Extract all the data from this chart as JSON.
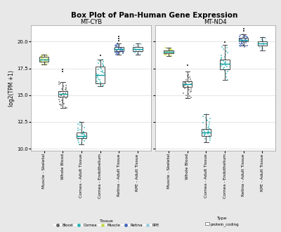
{
  "title": "Box Plot of Pan-Human Gene Expression",
  "ylabel": "log2(TPM +1)",
  "ylim": [
    9.8,
    21.5
  ],
  "yticks": [
    10.0,
    12.5,
    15.0,
    17.5,
    20.0
  ],
  "panels": [
    "MT-CYB",
    "MT-ND4"
  ],
  "categories": [
    "Muscle - Skeletal",
    "Whole Blood",
    "Cornea - Adult Tissue",
    "Cornea - Endothelium",
    "Retina - Adult Tissue",
    "RPE - Adult Tissue"
  ],
  "tissue_colors": {
    "Muscle - Skeletal": "#c8d94e",
    "Whole Blood": "#606060",
    "Cornea - Adult Tissue": "#2ab5b5",
    "Cornea - Endothelium": "#2ab5b5",
    "Retina - Adult Tissue": "#4466bb",
    "RPE - Adult Tissue": "#99ccdd"
  },
  "legend_tissue_colors": {
    "Blood": "#606060",
    "Cornea": "#2ab5b5",
    "Muscle": "#c8d94e",
    "Retina": "#4466bb",
    "RPE": "#99ccdd"
  },
  "MT-CYB": {
    "Muscle - Skeletal": {
      "median": 18.35,
      "q1": 18.15,
      "q3": 18.55,
      "whislo": 17.85,
      "whishi": 18.75,
      "points": [
        17.85,
        17.9,
        17.95,
        18.0,
        18.05,
        18.1,
        18.15,
        18.2,
        18.25,
        18.3,
        18.35,
        18.4,
        18.45,
        18.5,
        18.55,
        18.6,
        18.65,
        18.7,
        18.75,
        17.88,
        18.12,
        18.22,
        18.32,
        18.42,
        18.52,
        18.62,
        18.72,
        18.08,
        18.18,
        18.28,
        18.38,
        18.48,
        18.58,
        18.68
      ]
    },
    "Whole Blood": {
      "median": 15.1,
      "q1": 14.85,
      "q3": 15.35,
      "whislo": 13.8,
      "whishi": 16.2,
      "fliers_high": [
        17.2,
        17.4
      ],
      "points": [
        13.8,
        13.9,
        14.0,
        14.1,
        14.2,
        14.3,
        14.4,
        14.5,
        14.6,
        14.7,
        14.8,
        14.9,
        15.0,
        15.1,
        15.2,
        15.3,
        15.4,
        15.5,
        15.6,
        15.7,
        15.8,
        15.9,
        16.0,
        16.1,
        16.2,
        14.15,
        14.55,
        14.95,
        15.15,
        15.55
      ]
    },
    "Cornea - Adult Tissue": {
      "median": 11.2,
      "q1": 11.0,
      "q3": 11.5,
      "whislo": 10.4,
      "whishi": 12.5,
      "points": [
        10.4,
        10.5,
        10.6,
        10.7,
        10.8,
        10.9,
        11.0,
        11.1,
        11.2,
        11.3,
        11.4,
        11.5,
        11.6,
        11.7,
        11.8,
        11.9,
        12.0,
        12.1,
        12.2,
        12.3,
        12.4,
        12.5,
        11.05,
        11.15,
        11.25,
        11.35,
        10.95,
        11.45,
        11.55,
        10.85
      ]
    },
    "Cornea - Endothelium": {
      "median": 16.85,
      "q1": 16.1,
      "q3": 17.65,
      "whislo": 15.8,
      "whishi": 18.3,
      "fliers_high": [
        18.7
      ],
      "points": [
        15.8,
        16.0,
        16.2,
        16.4,
        16.6,
        16.8,
        17.0,
        17.2,
        17.4,
        17.6,
        17.8,
        18.0,
        18.2,
        18.3,
        16.1,
        16.3,
        16.5,
        16.7,
        17.1,
        17.3,
        17.5,
        17.7,
        17.9,
        16.9,
        15.9,
        16.15,
        17.15,
        18.1,
        16.85
      ]
    },
    "Retina - Adult Tissue": {
      "median": 19.3,
      "q1": 19.1,
      "q3": 19.5,
      "whislo": 18.8,
      "whishi": 19.8,
      "fliers_high": [
        20.1,
        20.3,
        20.5
      ],
      "points": [
        18.8,
        18.9,
        19.0,
        19.1,
        19.2,
        19.3,
        19.4,
        19.5,
        19.6,
        19.7,
        19.8,
        19.15,
        19.25,
        19.35,
        19.45,
        18.85,
        18.95,
        19.05,
        19.55,
        19.65,
        19.75,
        18.75,
        19.0,
        19.2,
        19.4,
        19.6,
        19.8,
        19.3,
        19.1,
        19.5,
        19.7,
        18.9,
        19.0,
        19.25,
        19.35,
        19.15,
        19.45,
        18.95,
        19.05
      ]
    },
    "RPE - Adult Tissue": {
      "median": 19.3,
      "q1": 19.1,
      "q3": 19.5,
      "whislo": 18.8,
      "whishi": 19.8,
      "points": [
        18.8,
        18.9,
        19.0,
        19.1,
        19.2,
        19.3,
        19.4,
        19.5,
        19.6,
        19.7,
        19.8,
        19.15,
        19.25,
        19.35,
        19.45,
        18.85,
        18.95,
        19.05,
        19.55,
        19.65,
        19.75,
        18.75,
        19.0,
        19.2
      ]
    }
  },
  "MT-ND4": {
    "Muscle - Skeletal": {
      "median": 19.05,
      "q1": 18.9,
      "q3": 19.2,
      "whislo": 18.65,
      "whishi": 19.4,
      "points": [
        18.65,
        18.7,
        18.75,
        18.8,
        18.85,
        18.9,
        18.95,
        19.0,
        19.05,
        19.1,
        19.15,
        19.2,
        19.25,
        19.3,
        19.35,
        19.4,
        18.8,
        19.0,
        19.2,
        18.9,
        19.1,
        19.3,
        18.75,
        18.85,
        19.05,
        19.15,
        19.25,
        19.35,
        18.7,
        18.95
      ]
    },
    "Whole Blood": {
      "median": 16.05,
      "q1": 15.75,
      "q3": 16.3,
      "whislo": 14.7,
      "whishi": 17.2,
      "fliers_high": [
        17.8
      ],
      "points": [
        14.7,
        14.9,
        15.1,
        15.3,
        15.5,
        15.7,
        15.9,
        16.0,
        16.1,
        16.2,
        16.3,
        16.4,
        16.5,
        16.6,
        16.7,
        16.8,
        16.9,
        15.8,
        16.15,
        16.25,
        15.95,
        15.85,
        15.75,
        15.65,
        15.55,
        16.05,
        14.8,
        15.0,
        15.2,
        15.4
      ]
    },
    "Cornea - Adult Tissue": {
      "median": 11.5,
      "q1": 11.2,
      "q3": 11.85,
      "whislo": 10.6,
      "whishi": 13.2,
      "points": [
        10.6,
        10.8,
        11.0,
        11.2,
        11.3,
        11.4,
        11.5,
        11.6,
        11.7,
        11.8,
        11.9,
        12.0,
        12.2,
        12.4,
        12.6,
        12.8,
        13.0,
        13.2,
        11.1,
        11.35,
        11.55,
        11.75,
        10.9,
        11.25,
        11.65,
        12.1,
        12.3,
        12.5,
        12.7,
        12.9
      ]
    },
    "Cornea - Endothelium": {
      "median": 17.9,
      "q1": 17.4,
      "q3": 18.3,
      "whislo": 16.4,
      "whishi": 19.7,
      "fliers_high": [
        19.95
      ],
      "points": [
        16.4,
        16.7,
        17.0,
        17.2,
        17.4,
        17.5,
        17.6,
        17.7,
        17.8,
        17.9,
        18.0,
        18.1,
        18.2,
        18.3,
        18.5,
        18.7,
        19.0,
        19.3,
        19.5,
        17.3,
        17.65,
        17.85,
        18.05,
        18.25,
        18.4,
        18.6,
        18.8,
        19.1,
        19.4
      ]
    },
    "Retina - Adult Tissue": {
      "median": 20.15,
      "q1": 20.0,
      "q3": 20.35,
      "whislo": 19.6,
      "whishi": 20.65,
      "fliers_high": [
        21.0,
        21.2
      ],
      "points": [
        19.6,
        19.7,
        19.8,
        19.9,
        20.0,
        20.1,
        20.2,
        20.3,
        20.4,
        20.5,
        20.6,
        20.65,
        19.65,
        19.75,
        19.85,
        19.95,
        20.05,
        20.15,
        20.25,
        20.35,
        20.45,
        20.55,
        19.5,
        19.7,
        19.9,
        20.1,
        20.3,
        20.5,
        20.6,
        19.6,
        19.8,
        20.0,
        20.2,
        20.4,
        19.55
      ]
    },
    "RPE - Adult Tissue": {
      "median": 19.8,
      "q1": 19.6,
      "q3": 20.0,
      "whislo": 19.2,
      "whishi": 20.4,
      "points": [
        19.2,
        19.3,
        19.4,
        19.5,
        19.6,
        19.7,
        19.8,
        19.9,
        20.0,
        20.1,
        20.2,
        20.3,
        20.4,
        19.55,
        19.65,
        19.75,
        19.85,
        19.95,
        20.05,
        20.15,
        20.25,
        20.35,
        19.45,
        19.35
      ]
    }
  },
  "outer_background": "#e8e8e8",
  "panel_background": "#ffffff",
  "grid_color": "#e0e0e0",
  "box_line_color": "#444444",
  "median_line_color": "#009999",
  "title_fontsize": 7.5,
  "label_fontsize": 5.5,
  "tick_fontsize": 5.0,
  "panel_title_fontsize": 6.0
}
